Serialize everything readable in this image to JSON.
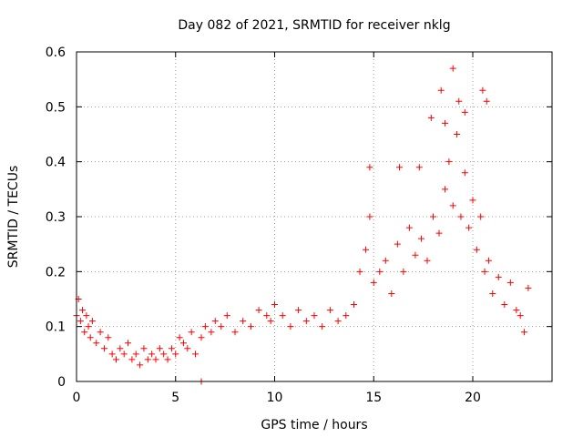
{
  "chart_data": {
    "type": "scatter",
    "title": "Day 082 of 2021, SRMTID for receiver nklg",
    "xlabel": "GPS time / hours",
    "ylabel": "SRMTID / TECUs",
    "xlim": [
      0,
      24
    ],
    "ylim": [
      0,
      0.6
    ],
    "xticks": [
      0,
      5,
      10,
      15,
      20
    ],
    "yticks": [
      0,
      0.1,
      0.2,
      0.3,
      0.4,
      0.5,
      0.6
    ],
    "xtick_labels": [
      "0",
      "5",
      "10",
      "15",
      "20"
    ],
    "ytick_labels": [
      "0",
      "0.1",
      "0.2",
      "0.3",
      "0.4",
      "0.5",
      "0.6"
    ],
    "grid": true,
    "marker": "+",
    "color": "#ff0000",
    "series": [
      {
        "name": "SRMTID",
        "x": [
          0.0,
          0.1,
          0.2,
          0.3,
          0.4,
          0.5,
          0.6,
          0.7,
          0.8,
          1.0,
          1.2,
          1.4,
          1.6,
          1.8,
          2.0,
          2.2,
          2.4,
          2.6,
          2.8,
          3.0,
          3.2,
          3.4,
          3.6,
          3.8,
          4.0,
          4.2,
          4.4,
          4.6,
          4.8,
          5.0,
          5.2,
          5.4,
          5.6,
          5.8,
          6.0,
          6.3,
          6.5,
          6.8,
          7.0,
          7.3,
          7.6,
          8.0,
          8.4,
          8.8,
          9.2,
          9.6,
          9.8,
          10.0,
          10.4,
          10.8,
          11.2,
          11.6,
          12.0,
          12.4,
          12.8,
          13.2,
          13.6,
          14.0,
          14.3,
          14.6,
          14.8,
          15.0,
          15.3,
          15.6,
          15.9,
          16.2,
          16.5,
          16.8,
          17.1,
          17.4,
          17.7,
          18.0,
          18.3,
          18.6,
          18.8,
          19.0,
          19.2,
          19.4,
          19.6,
          19.8,
          20.0,
          20.2,
          20.4,
          20.6,
          20.8,
          21.0,
          21.3,
          21.6,
          21.9,
          22.2,
          22.4,
          22.6,
          22.8
        ],
        "y": [
          0.12,
          0.15,
          0.11,
          0.13,
          0.09,
          0.12,
          0.1,
          0.08,
          0.11,
          0.07,
          0.09,
          0.06,
          0.08,
          0.05,
          0.04,
          0.06,
          0.05,
          0.07,
          0.04,
          0.05,
          0.03,
          0.06,
          0.04,
          0.05,
          0.04,
          0.06,
          0.05,
          0.04,
          0.06,
          0.05,
          0.08,
          0.07,
          0.06,
          0.09,
          0.05,
          0.08,
          0.1,
          0.09,
          0.11,
          0.1,
          0.12,
          0.09,
          0.11,
          0.1,
          0.13,
          0.12,
          0.11,
          0.14,
          0.12,
          0.1,
          0.13,
          0.11,
          0.12,
          0.1,
          0.13,
          0.11,
          0.12,
          0.14,
          0.2,
          0.24,
          0.3,
          0.18,
          0.2,
          0.22,
          0.16,
          0.25,
          0.2,
          0.28,
          0.23,
          0.26,
          0.22,
          0.3,
          0.27,
          0.35,
          0.4,
          0.32,
          0.45,
          0.3,
          0.38,
          0.28,
          0.33,
          0.24,
          0.3,
          0.2,
          0.22,
          0.16,
          0.19,
          0.14,
          0.18,
          0.13,
          0.12,
          0.09,
          0.17
        ]
      }
    ],
    "peak_points": [
      {
        "x": 14.8,
        "y": 0.39
      },
      {
        "x": 16.3,
        "y": 0.39
      },
      {
        "x": 17.3,
        "y": 0.39
      },
      {
        "x": 17.9,
        "y": 0.48
      },
      {
        "x": 18.4,
        "y": 0.53
      },
      {
        "x": 18.6,
        "y": 0.47
      },
      {
        "x": 19.0,
        "y": 0.57
      },
      {
        "x": 19.3,
        "y": 0.51
      },
      {
        "x": 19.6,
        "y": 0.49
      },
      {
        "x": 20.5,
        "y": 0.53
      },
      {
        "x": 20.7,
        "y": 0.51
      },
      {
        "x": 6.3,
        "y": 0.0
      }
    ]
  }
}
